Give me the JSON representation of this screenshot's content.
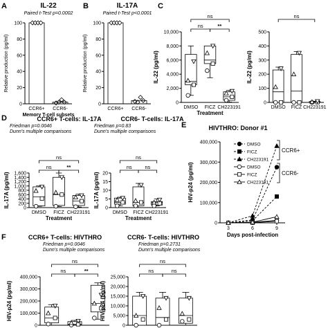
{
  "figure": {
    "panels": [
      "A",
      "B",
      "C",
      "D",
      "E",
      "F"
    ]
  },
  "chart_data": [
    {
      "panel": "A",
      "type": "scatter",
      "title": "IL-22",
      "subtitle": "Paired t-Test p=0.0002",
      "ylabel": "Relative production (pg/ml)",
      "xlabel": "Memory T-cell subsets",
      "categories": [
        "CCR6+",
        "CCR6-"
      ],
      "ylim": [
        0,
        100
      ],
      "yticks": [
        0,
        20,
        40,
        60,
        80,
        100
      ],
      "series": [
        {
          "values": [
            100,
            100,
            100,
            100
          ]
        },
        {
          "values": [
            1,
            2,
            5,
            2
          ]
        }
      ],
      "bars": [
        100,
        2
      ]
    },
    {
      "panel": "B",
      "type": "scatter",
      "title": "IL-17A",
      "subtitle": "Paired t-Test p<0.0001",
      "ylabel": "Relative production (pg/ml)",
      "categories": [
        "CCR6+",
        "CCR6-"
      ],
      "ylim": [
        0,
        100
      ],
      "yticks": [
        0,
        20,
        40,
        60,
        80,
        100
      ],
      "series": [
        {
          "values": [
            100,
            100,
            100,
            100
          ]
        },
        {
          "values": [
            3,
            2,
            8,
            4
          ]
        }
      ],
      "bars": [
        100,
        4
      ]
    },
    {
      "panel": "C1",
      "type": "box",
      "ylabel": "IL-22 (pg/ml)",
      "xlabel": "Treatment",
      "categories": [
        "DMSO",
        "FICZ",
        "CH223191"
      ],
      "ylim": [
        0,
        10000
      ],
      "yticks": [
        0,
        2000,
        4000,
        6000,
        8000,
        10000
      ],
      "boxes": [
        {
          "min": 1000,
          "q1": 2500,
          "median": 3000,
          "q3": 6800,
          "max": 8000,
          "points": [
            1000,
            2500,
            3100,
            5800
          ]
        },
        {
          "min": 3500,
          "q1": 5500,
          "median": 6000,
          "q3": 8000,
          "max": 8000,
          "points": [
            4500,
            5500,
            7000,
            8000
          ]
        },
        {
          "min": 50,
          "q1": 300,
          "median": 800,
          "q3": 1500,
          "max": 1700,
          "points": [
            300,
            800,
            1300,
            1600
          ]
        }
      ],
      "annotations": [
        "ns",
        "**",
        "ns"
      ]
    },
    {
      "panel": "C2",
      "type": "box",
      "ylabel": "IL-22 (pg/ml)",
      "categories": [
        "DMSO",
        "FICZ",
        "CH223191"
      ],
      "ylim": [
        0,
        500
      ],
      "yticks": [
        0,
        100,
        200,
        300,
        400,
        500
      ],
      "boxes": [
        {
          "min": 0,
          "q1": 0,
          "median": 75,
          "q3": 230,
          "max": 250,
          "points": [
            0,
            0,
            110,
            240
          ]
        },
        {
          "min": 0,
          "q1": 0,
          "median": 80,
          "q3": 340,
          "max": 360,
          "points": [
            0,
            0,
            200,
            350
          ]
        },
        {
          "min": 0,
          "q1": 0,
          "median": 3,
          "q3": 6,
          "max": 8,
          "points": [
            0,
            2,
            4,
            8
          ]
        }
      ],
      "annotations": [
        "ns"
      ]
    },
    {
      "panel": "D1",
      "type": "box",
      "title": "CCR6+ T-cells: IL-17A",
      "subtitle": "Friedman p=0.0046",
      "subtitle2": "Dunn's multiple comparisons",
      "ylabel": "IL-17A (pg/ml)",
      "xlabel": "Treatment",
      "categories": [
        "DMSO",
        "FICZ",
        "CH223191"
      ],
      "ylim": [
        0,
        1600
      ],
      "yticks": [
        0,
        200,
        400,
        600,
        800,
        1000,
        1200,
        1400,
        1600
      ],
      "boxes": [
        {
          "min": 60,
          "q1": 80,
          "median": 500,
          "q3": 960,
          "max": 1000,
          "points": [
            60,
            420,
            780,
            960
          ]
        },
        {
          "min": 50,
          "q1": 100,
          "median": 600,
          "q3": 1400,
          "max": 1600,
          "points": [
            60,
            600,
            700,
            1400
          ]
        },
        {
          "min": 30,
          "q1": 100,
          "median": 300,
          "q3": 560,
          "max": 620,
          "points": [
            40,
            300,
            480,
            560
          ]
        }
      ],
      "annotations": [
        "ns",
        "**",
        "ns"
      ]
    },
    {
      "panel": "D2",
      "type": "box",
      "title": "CCR6- T-cells: IL-17A",
      "subtitle": "Friedman p=0.83",
      "subtitle2": "Dunn's multiple comparisons",
      "ylabel": "IL-17A (pg/ml)",
      "xlabel": "Treatment",
      "categories": [
        "DMSO",
        "FICZ",
        "CH223191"
      ],
      "ylim": [
        0,
        20
      ],
      "yticks": [
        0,
        5,
        10,
        15,
        20
      ],
      "boxes": [
        {
          "min": 1,
          "q1": 2,
          "median": 3,
          "q3": 5.5,
          "max": 6,
          "points": [
            1,
            3,
            4.5,
            5.5
          ]
        },
        {
          "min": 0,
          "q1": 1,
          "median": 3,
          "q3": 12,
          "max": 14,
          "points": [
            1,
            3,
            4,
            13
          ]
        },
        {
          "min": 1,
          "q1": 1.5,
          "median": 3,
          "q3": 3.5,
          "max": 5,
          "points": [
            1,
            2.5,
            3,
            4.5
          ]
        }
      ],
      "annotations": [
        "ns",
        "ns",
        "ns"
      ]
    },
    {
      "panel": "E",
      "type": "line",
      "title": "HIVTHRO: Donor #1",
      "ylabel": "HIV-p24 (pg/ml)",
      "xlabel": "Days post-infection",
      "x": [
        3,
        6,
        9
      ],
      "ylim": [
        0,
        400000
      ],
      "yticks": [
        0,
        100000,
        200000,
        300000,
        400000
      ],
      "series": [
        {
          "name": "DMSO",
          "group": "CCR6+",
          "values": [
            0,
            15000,
            275000
          ]
        },
        {
          "name": "FICZ",
          "group": "CCR6+",
          "values": [
            0,
            10000,
            130000
          ]
        },
        {
          "name": "CH223191",
          "group": "CCR6+",
          "values": [
            0,
            35000,
            380000
          ]
        },
        {
          "name": "DMSO",
          "group": "CCR6-",
          "values": [
            0,
            2000,
            12000
          ]
        },
        {
          "name": "FICZ",
          "group": "CCR6-",
          "values": [
            0,
            1000,
            8000
          ]
        },
        {
          "name": "CH223191",
          "group": "CCR6-",
          "values": [
            0,
            3000,
            30000
          ]
        }
      ],
      "legend_groups": [
        "CCR6+",
        "CCR6-"
      ]
    },
    {
      "panel": "F1",
      "type": "box",
      "title": "CCR6+ T-cells: HIVTHRO",
      "subtitle": "Friedman p=0.0046",
      "subtitle2": "Dunn's multiple comparisons",
      "ylabel": "HIV-p24 (pg/ml)",
      "categories": [
        "DMSO",
        "FICZ",
        "CH223191"
      ],
      "ylim": [
        0,
        400000
      ],
      "yticks": [
        0,
        100000,
        200000,
        300000,
        400000
      ],
      "boxes": [
        {
          "min": 0,
          "q1": 20000,
          "median": 60000,
          "q3": 150000,
          "max": 170000,
          "points": [
            10000,
            60000,
            100000,
            160000
          ]
        },
        {
          "min": 0,
          "q1": 2000,
          "median": 8000,
          "q3": 30000,
          "max": 40000,
          "points": [
            2000,
            8000,
            20000,
            35000
          ]
        },
        {
          "min": 50000,
          "q1": 110000,
          "median": 180000,
          "q3": 330000,
          "max": 350000,
          "points": [
            60000,
            140000,
            180000,
            250000
          ]
        }
      ],
      "annotations": [
        "ns",
        "**",
        "ns"
      ]
    },
    {
      "panel": "F2",
      "type": "box",
      "title": "CCR6- T-cells: HIVTHRO",
      "subtitle": "Friedman p=0.2731",
      "subtitle2": "Dunn's multiple comparisons",
      "ylabel": "HIV-p24 (pg/ml)",
      "categories": [
        "DMSO",
        "FICZ",
        "CH223191"
      ],
      "ylim": [
        0,
        25000
      ],
      "yticks": [
        0,
        5000,
        10000,
        15000,
        20000,
        25000
      ],
      "boxes": [
        {
          "min": 0,
          "q1": 0,
          "median": 5000,
          "q3": 15000,
          "max": 17000,
          "points": [
            0,
            3000,
            5000,
            15000
          ]
        },
        {
          "min": 0,
          "q1": 0,
          "median": 4000,
          "q3": 14000,
          "max": 17000,
          "points": [
            0,
            3000,
            9000,
            14000
          ]
        },
        {
          "min": 0,
          "q1": 1000,
          "median": 5000,
          "q3": 14000,
          "max": 17000,
          "points": [
            2000,
            3000,
            6000,
            14000
          ]
        }
      ],
      "annotations": [
        "ns",
        "ns",
        "ns"
      ]
    }
  ]
}
